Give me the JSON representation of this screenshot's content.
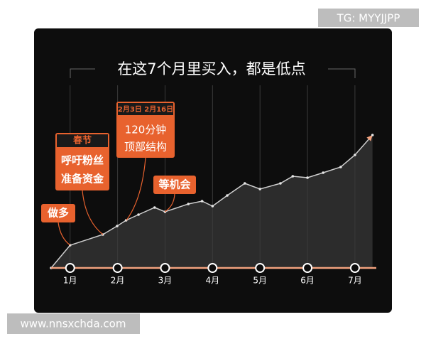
{
  "watermarks": {
    "top": "TG: MYYJJPP",
    "bottom": "www.nnsxchda.com"
  },
  "chart_data": {
    "type": "area",
    "title": "在这7个月里买入，都是低点",
    "x": [
      0.6,
      1,
      1.69,
      1.99,
      2.18,
      2.44,
      2.78,
      3,
      3.49,
      3.78,
      4,
      4.31,
      4.68,
      5,
      5.43,
      5.69,
      6,
      6.33,
      6.7,
      7,
      7.37
    ],
    "values": [
      0,
      32,
      47,
      59,
      67,
      75,
      85,
      79,
      90,
      94,
      87,
      102,
      119,
      111,
      119,
      129,
      127,
      134,
      142,
      159,
      187
    ],
    "color": "#cfcfcf",
    "fill": "#2c2c2c",
    "axis_color": "#f2a27e",
    "xlim": [
      0.6,
      7.45
    ],
    "ylim": [
      0,
      200
    ],
    "xticks": [
      {
        "value": 1,
        "label": "1月"
      },
      {
        "value": 2,
        "label": "2月"
      },
      {
        "value": 3,
        "label": "3月"
      },
      {
        "value": 4,
        "label": "4月"
      },
      {
        "value": 5,
        "label": "5月"
      },
      {
        "value": 6,
        "label": "6月"
      },
      {
        "value": 7,
        "label": "7月"
      }
    ],
    "annotations": [
      {
        "text": "做多"
      },
      {
        "title": "春节",
        "lines": [
          "呼吁粉丝",
          "准备资金"
        ]
      },
      {
        "title": "2月3日 2月16日",
        "lines": [
          "120分钟",
          "顶部结构"
        ]
      },
      {
        "text": "等机会"
      }
    ]
  }
}
